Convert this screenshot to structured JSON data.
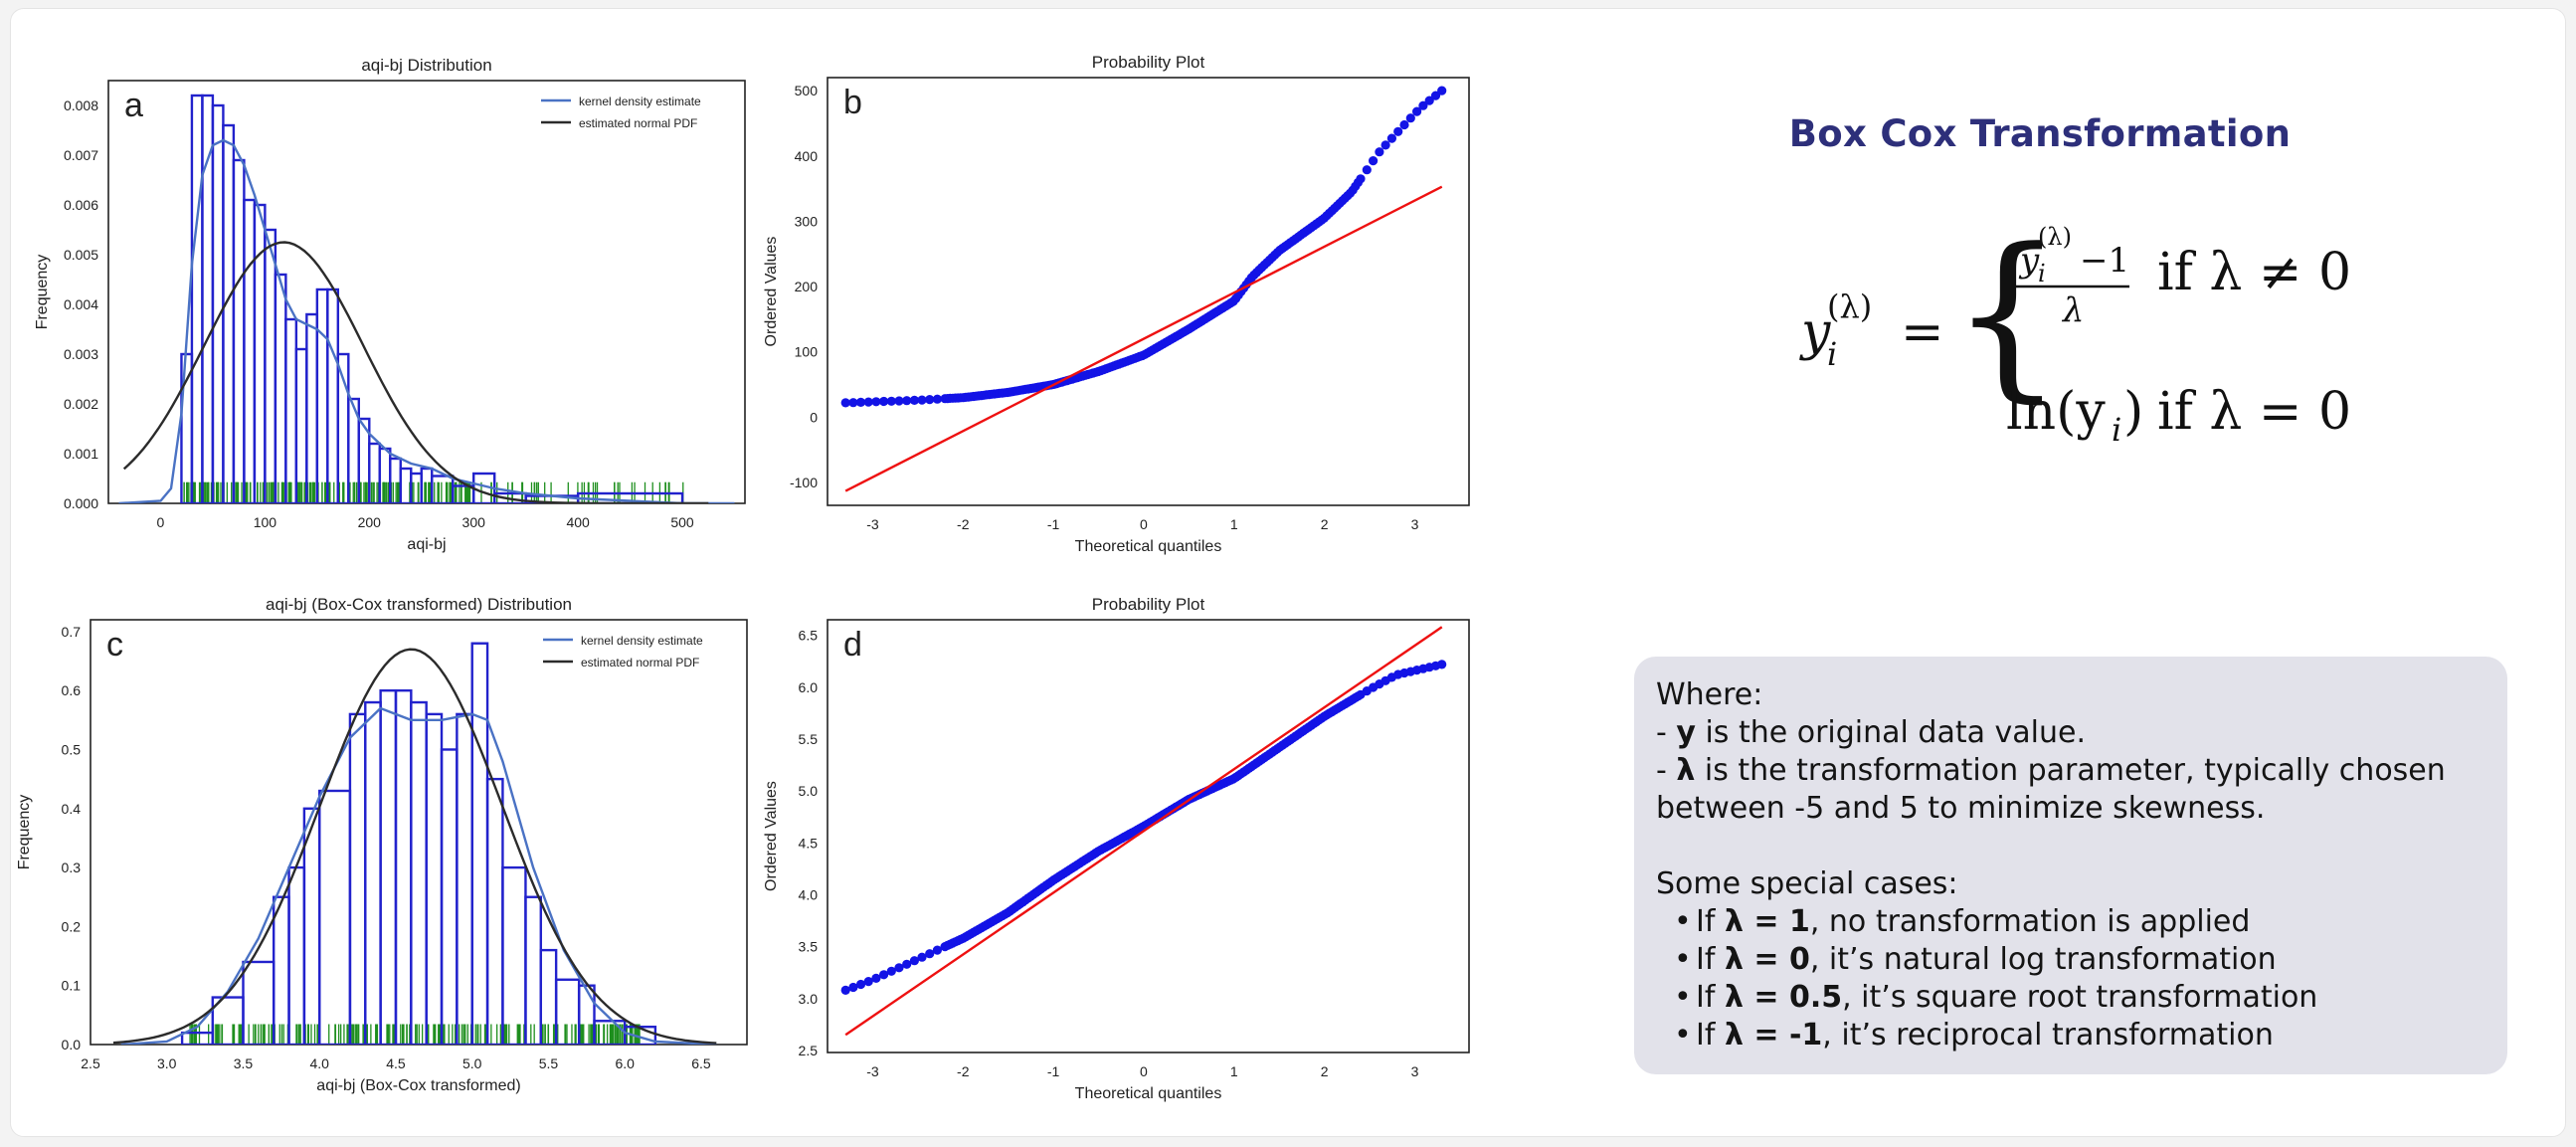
{
  "chart_data": [
    {
      "panel": "a",
      "type": "histogram",
      "title": "aqi-bj Distribution",
      "xlabel": "aqi-bj",
      "ylabel": "Frequency",
      "xlim": [
        -50,
        560
      ],
      "ylim": [
        0,
        0.0085
      ],
      "xticks": [
        0,
        100,
        200,
        300,
        400,
        500
      ],
      "yticks": [
        0.0,
        0.001,
        0.002,
        0.003,
        0.004,
        0.005,
        0.006,
        0.007,
        0.008
      ],
      "ytick_decimals": 3,
      "legend": [
        "kernel density estimate",
        "estimated normal PDF"
      ],
      "legend_position": "top-right",
      "colors": {
        "histogram": "#2222cc",
        "kde": "#4a72c4",
        "normal": "#2b2b2b",
        "rug": "#1e8f1e"
      },
      "bins": [
        [
          20,
          30,
          0.003
        ],
        [
          30,
          40,
          0.0082
        ],
        [
          40,
          50,
          0.0082
        ],
        [
          50,
          60,
          0.008
        ],
        [
          60,
          70,
          0.0076
        ],
        [
          70,
          80,
          0.0069
        ],
        [
          80,
          90,
          0.0061
        ],
        [
          90,
          100,
          0.006
        ],
        [
          100,
          110,
          0.0055
        ],
        [
          110,
          120,
          0.0046
        ],
        [
          120,
          130,
          0.0037
        ],
        [
          130,
          140,
          0.0031
        ],
        [
          140,
          150,
          0.0038
        ],
        [
          150,
          160,
          0.0043
        ],
        [
          160,
          170,
          0.0043
        ],
        [
          170,
          180,
          0.003
        ],
        [
          180,
          190,
          0.0021
        ],
        [
          190,
          200,
          0.0017
        ],
        [
          200,
          210,
          0.0012
        ],
        [
          210,
          220,
          0.0011
        ],
        [
          220,
          230,
          0.0009
        ],
        [
          230,
          240,
          0.0007
        ],
        [
          240,
          250,
          0.0006
        ],
        [
          250,
          260,
          0.0007
        ],
        [
          260,
          280,
          0.00055
        ],
        [
          280,
          300,
          0.00035
        ],
        [
          300,
          320,
          0.0006
        ],
        [
          320,
          350,
          0.0002
        ],
        [
          350,
          400,
          0.00015
        ],
        [
          400,
          500,
          0.0002
        ]
      ],
      "kde": [
        [
          -40,
          0.0
        ],
        [
          0,
          5e-05
        ],
        [
          10,
          0.0003
        ],
        [
          20,
          0.0018
        ],
        [
          30,
          0.0048
        ],
        [
          40,
          0.0066
        ],
        [
          50,
          0.0072
        ],
        [
          60,
          0.0073
        ],
        [
          70,
          0.0072
        ],
        [
          80,
          0.0068
        ],
        [
          90,
          0.0062
        ],
        [
          100,
          0.0055
        ],
        [
          110,
          0.0048
        ],
        [
          120,
          0.0041
        ],
        [
          130,
          0.0037
        ],
        [
          140,
          0.0036
        ],
        [
          150,
          0.0035
        ],
        [
          160,
          0.0033
        ],
        [
          170,
          0.0028
        ],
        [
          180,
          0.0022
        ],
        [
          190,
          0.0017
        ],
        [
          200,
          0.0014
        ],
        [
          220,
          0.001
        ],
        [
          240,
          0.0008
        ],
        [
          260,
          0.0007
        ],
        [
          280,
          0.0005
        ],
        [
          300,
          0.0004
        ],
        [
          320,
          0.0003
        ],
        [
          350,
          0.0002
        ],
        [
          400,
          0.0001
        ],
        [
          450,
          5e-05
        ],
        [
          500,
          0.0
        ],
        [
          550,
          0.0
        ]
      ],
      "normal_pdf": {
        "mean": 118,
        "sd": 76,
        "peak": 0.00525,
        "from": -35,
        "to": 525
      },
      "rug": {
        "from": 22,
        "to": 505,
        "dense_to": 300
      }
    },
    {
      "panel": "b",
      "type": "scatter",
      "title": "Probability Plot",
      "xlabel": "Theoretical quantiles",
      "ylabel": "Ordered Values",
      "xlim": [
        -3.5,
        3.6
      ],
      "ylim": [
        -135,
        520
      ],
      "xticks": [
        -3,
        -2,
        -1,
        0,
        1,
        2,
        3
      ],
      "yticks": [
        -100,
        0,
        100,
        200,
        300,
        400,
        500
      ],
      "ytick_decimals": 0,
      "fit_line": [
        [
          -3.3,
          -113
        ],
        [
          3.3,
          353
        ]
      ],
      "curve": [
        [
          -3.3,
          22
        ],
        [
          -2.5,
          26
        ],
        [
          -2.0,
          30
        ],
        [
          -1.5,
          38
        ],
        [
          -1.0,
          50
        ],
        [
          -0.5,
          70
        ],
        [
          0.0,
          95
        ],
        [
          0.5,
          135
        ],
        [
          1.0,
          178
        ],
        [
          1.2,
          215
        ],
        [
          1.5,
          255
        ],
        [
          2.0,
          305
        ],
        [
          2.3,
          345
        ],
        [
          2.6,
          405
        ],
        [
          2.8,
          435
        ],
        [
          3.0,
          465
        ],
        [
          3.1,
          478
        ],
        [
          3.3,
          500
        ]
      ],
      "colors": {
        "points": "#1313e6",
        "line": "#ee1111"
      }
    },
    {
      "panel": "c",
      "type": "histogram",
      "title": "aqi-bj (Box-Cox transformed) Distribution",
      "xlabel": "aqi-bj (Box-Cox transformed)",
      "ylabel": "Frequency",
      "xlim": [
        2.5,
        6.8
      ],
      "ylim": [
        0,
        0.72
      ],
      "xticks": [
        2.5,
        3.0,
        3.5,
        4.0,
        4.5,
        5.0,
        5.5,
        6.0,
        6.5
      ],
      "yticks": [
        0.0,
        0.1,
        0.2,
        0.3,
        0.4,
        0.5,
        0.6,
        0.7
      ],
      "ytick_decimals": 1,
      "legend": [
        "kernel density estimate",
        "estimated normal PDF"
      ],
      "legend_position": "top-right",
      "colors": {
        "histogram": "#2222cc",
        "kde": "#4a72c4",
        "normal": "#2b2b2b",
        "rug": "#1e8f1e"
      },
      "bins": [
        [
          3.1,
          3.3,
          0.02
        ],
        [
          3.3,
          3.5,
          0.08
        ],
        [
          3.5,
          3.7,
          0.14
        ],
        [
          3.7,
          3.8,
          0.25
        ],
        [
          3.8,
          3.9,
          0.3
        ],
        [
          3.9,
          4.0,
          0.4
        ],
        [
          4.0,
          4.2,
          0.43
        ],
        [
          4.2,
          4.3,
          0.56
        ],
        [
          4.3,
          4.4,
          0.58
        ],
        [
          4.4,
          4.5,
          0.6
        ],
        [
          4.5,
          4.6,
          0.6
        ],
        [
          4.6,
          4.7,
          0.58
        ],
        [
          4.7,
          4.8,
          0.56
        ],
        [
          4.8,
          4.9,
          0.5
        ],
        [
          4.9,
          5.0,
          0.56
        ],
        [
          5.0,
          5.1,
          0.68
        ],
        [
          5.1,
          5.2,
          0.45
        ],
        [
          5.2,
          5.35,
          0.3
        ],
        [
          5.35,
          5.45,
          0.25
        ],
        [
          5.45,
          5.55,
          0.16
        ],
        [
          5.55,
          5.7,
          0.11
        ],
        [
          5.7,
          5.8,
          0.1
        ],
        [
          5.8,
          6.0,
          0.04
        ],
        [
          6.0,
          6.2,
          0.03
        ]
      ],
      "kde": [
        [
          2.7,
          0.0
        ],
        [
          3.0,
          0.005
        ],
        [
          3.2,
          0.03
        ],
        [
          3.4,
          0.09
        ],
        [
          3.6,
          0.18
        ],
        [
          3.8,
          0.3
        ],
        [
          4.0,
          0.42
        ],
        [
          4.2,
          0.52
        ],
        [
          4.4,
          0.57
        ],
        [
          4.6,
          0.55
        ],
        [
          4.8,
          0.55
        ],
        [
          5.0,
          0.56
        ],
        [
          5.1,
          0.55
        ],
        [
          5.2,
          0.48
        ],
        [
          5.4,
          0.3
        ],
        [
          5.6,
          0.16
        ],
        [
          5.8,
          0.07
        ],
        [
          6.0,
          0.02
        ],
        [
          6.2,
          0.005
        ],
        [
          6.6,
          0.0
        ]
      ],
      "normal_pdf": {
        "mean": 4.6,
        "sd": 0.595,
        "peak": 0.67,
        "from": 2.65,
        "to": 6.6
      },
      "rug": {
        "from": 3.15,
        "to": 6.1,
        "dense_to": 5.9
      }
    },
    {
      "panel": "d",
      "type": "scatter",
      "title": "Probability Plot",
      "xlabel": "Theoretical quantiles",
      "ylabel": "Ordered Values",
      "xlim": [
        -3.5,
        3.6
      ],
      "ylim": [
        2.48,
        6.65
      ],
      "xticks": [
        -3,
        -2,
        -1,
        0,
        1,
        2,
        3
      ],
      "yticks": [
        2.5,
        3.0,
        3.5,
        4.0,
        4.5,
        5.0,
        5.5,
        6.0,
        6.5
      ],
      "ytick_decimals": 1,
      "fit_line": [
        [
          -3.3,
          2.65
        ],
        [
          3.3,
          6.58
        ]
      ],
      "curve": [
        [
          -3.3,
          3.08
        ],
        [
          -3.0,
          3.18
        ],
        [
          -2.5,
          3.38
        ],
        [
          -2.0,
          3.58
        ],
        [
          -1.5,
          3.83
        ],
        [
          -1.0,
          4.14
        ],
        [
          -0.5,
          4.42
        ],
        [
          0.0,
          4.66
        ],
        [
          0.5,
          4.92
        ],
        [
          1.0,
          5.12
        ],
        [
          1.5,
          5.42
        ],
        [
          2.0,
          5.72
        ],
        [
          2.5,
          5.98
        ],
        [
          2.8,
          6.12
        ],
        [
          3.0,
          6.16
        ],
        [
          3.3,
          6.22
        ]
      ],
      "colors": {
        "points": "#1313e6",
        "line": "#ee1111"
      }
    }
  ],
  "panel_letters": [
    "a",
    "b",
    "c",
    "d"
  ],
  "box_cox": {
    "title": "Box Cox Transformation",
    "formula": {
      "lhs": "y",
      "sub_i": "i",
      "sup_lambda": "(λ)",
      "equals": "=",
      "case1_num_rest": "−1",
      "case1_den": "λ",
      "case1_cond": "if λ ≠ 0",
      "case2_expr": "ln(y",
      "case2_close": ")",
      "case2_cond": "if λ = 0"
    },
    "notes": {
      "where": "Where:",
      "y_prefix": "- ",
      "y_bold": "y",
      "y_text": " is the original data value.",
      "lambda_prefix": "- ",
      "lambda_bold": "λ",
      "lambda_text": " is the transformation parameter, typically chosen between -5 and 5 to minimize skewness.",
      "special": "Some special cases:",
      "cases": [
        {
          "pre": "If ",
          "bold": "λ = 1",
          "post": ", no transformation is applied"
        },
        {
          "pre": "If ",
          "bold": "λ = 0",
          "post": ", it’s natural log transformation"
        },
        {
          "pre": "If ",
          "bold": "λ = 0.5",
          "post": ", it’s square root transformation"
        },
        {
          "pre": "If ",
          "bold": "λ = -1",
          "post": ", it’s reciprocal transformation"
        }
      ]
    }
  }
}
